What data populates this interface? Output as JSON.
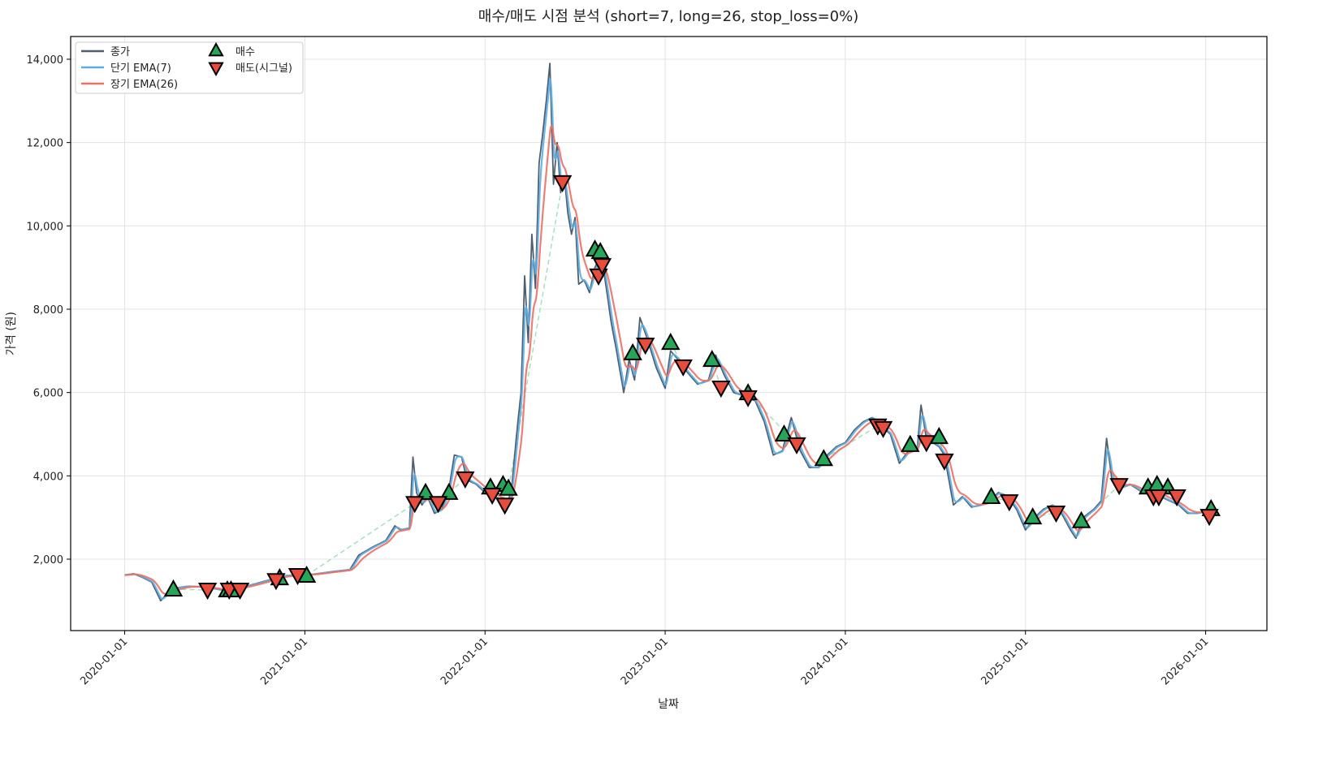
{
  "chart_data": {
    "type": "line",
    "title": "매수/매도 시점 분석 (short=7, long=26, stop_loss=0%)",
    "xlabel": "날짜",
    "ylabel": "가격 (원)",
    "xlim": [
      2019.7,
      2026.34
    ],
    "ylim": [
      286,
      14545
    ],
    "grid": true,
    "legend_placement": "top-left",
    "x_ticks": [
      {
        "value": 2020,
        "label": "2020-01-01"
      },
      {
        "value": 2021,
        "label": "2021-01-01"
      },
      {
        "value": 2022,
        "label": "2022-01-01"
      },
      {
        "value": 2023,
        "label": "2023-01-01"
      },
      {
        "value": 2024,
        "label": "2024-01-01"
      },
      {
        "value": 2025,
        "label": "2025-01-01"
      },
      {
        "value": 2026,
        "label": "2026-01-01"
      }
    ],
    "y_ticks": [
      {
        "value": 2000,
        "label": "2,000"
      },
      {
        "value": 4000,
        "label": "4,000"
      },
      {
        "value": 6000,
        "label": "6,000"
      },
      {
        "value": 8000,
        "label": "8,000"
      },
      {
        "value": 10000,
        "label": "10,000"
      },
      {
        "value": 12000,
        "label": "12,000"
      },
      {
        "value": 14000,
        "label": "14,000"
      }
    ],
    "legend": [
      {
        "label": "종가",
        "kind": "line",
        "color": "#4f5f70"
      },
      {
        "label": "단기 EMA(7)",
        "kind": "line",
        "color": "#5dade2"
      },
      {
        "label": "장기 EMA(26)",
        "kind": "line",
        "color": "#ec7063"
      },
      {
        "label": "매수",
        "kind": "buy",
        "color": "#27a559"
      },
      {
        "label": "매도(시그널)",
        "kind": "sell",
        "color": "#e74c3c"
      }
    ],
    "ema_short": 7,
    "ema_long": 26,
    "close_x_unit": "decimal year",
    "close": [
      [
        2020.0,
        1620
      ],
      [
        2020.05,
        1650
      ],
      [
        2020.1,
        1560
      ],
      [
        2020.15,
        1450
      ],
      [
        2020.2,
        1000
      ],
      [
        2020.22,
        1100
      ],
      [
        2020.27,
        1300
      ],
      [
        2020.35,
        1350
      ],
      [
        2020.45,
        1330
      ],
      [
        2020.55,
        1250
      ],
      [
        2020.62,
        1300
      ],
      [
        2020.7,
        1380
      ],
      [
        2020.8,
        1500
      ],
      [
        2020.88,
        1600
      ],
      [
        2020.95,
        1620
      ],
      [
        2021.05,
        1640
      ],
      [
        2021.15,
        1700
      ],
      [
        2021.25,
        1750
      ],
      [
        2021.3,
        2100
      ],
      [
        2021.38,
        2300
      ],
      [
        2021.45,
        2450
      ],
      [
        2021.5,
        2800
      ],
      [
        2021.53,
        2700
      ],
      [
        2021.58,
        2750
      ],
      [
        2021.6,
        4450
      ],
      [
        2021.62,
        3600
      ],
      [
        2021.65,
        3300
      ],
      [
        2021.68,
        3500
      ],
      [
        2021.72,
        3100
      ],
      [
        2021.76,
        3200
      ],
      [
        2021.8,
        3700
      ],
      [
        2021.83,
        4500
      ],
      [
        2021.87,
        4450
      ],
      [
        2021.9,
        3900
      ],
      [
        2021.95,
        3800
      ],
      [
        2022.0,
        3600
      ],
      [
        2022.05,
        3500
      ],
      [
        2022.1,
        3400
      ],
      [
        2022.12,
        3200
      ],
      [
        2022.15,
        3800
      ],
      [
        2022.18,
        5200
      ],
      [
        2022.2,
        6000
      ],
      [
        2022.22,
        8800
      ],
      [
        2022.24,
        7200
      ],
      [
        2022.26,
        9800
      ],
      [
        2022.28,
        8500
      ],
      [
        2022.3,
        11500
      ],
      [
        2022.32,
        12200
      ],
      [
        2022.34,
        13000
      ],
      [
        2022.36,
        13900
      ],
      [
        2022.38,
        11000
      ],
      [
        2022.4,
        12000
      ],
      [
        2022.42,
        10800
      ],
      [
        2022.44,
        11200
      ],
      [
        2022.46,
        10300
      ],
      [
        2022.48,
        9800
      ],
      [
        2022.5,
        10200
      ],
      [
        2022.52,
        8600
      ],
      [
        2022.55,
        8700
      ],
      [
        2022.58,
        8400
      ],
      [
        2022.61,
        9000
      ],
      [
        2022.64,
        9300
      ],
      [
        2022.66,
        8900
      ],
      [
        2022.7,
        7700
      ],
      [
        2022.73,
        7000
      ],
      [
        2022.77,
        6000
      ],
      [
        2022.8,
        6800
      ],
      [
        2022.83,
        6300
      ],
      [
        2022.86,
        7800
      ],
      [
        2022.9,
        7300
      ],
      [
        2022.95,
        6600
      ],
      [
        2023.0,
        6100
      ],
      [
        2023.03,
        7000
      ],
      [
        2023.07,
        6800
      ],
      [
        2023.12,
        6500
      ],
      [
        2023.18,
        6200
      ],
      [
        2023.24,
        6300
      ],
      [
        2023.28,
        6900
      ],
      [
        2023.33,
        6400
      ],
      [
        2023.38,
        6000
      ],
      [
        2023.45,
        5900
      ],
      [
        2023.5,
        5800
      ],
      [
        2023.55,
        5300
      ],
      [
        2023.6,
        4500
      ],
      [
        2023.65,
        4600
      ],
      [
        2023.7,
        5400
      ],
      [
        2023.75,
        4600
      ],
      [
        2023.8,
        4200
      ],
      [
        2023.85,
        4200
      ],
      [
        2023.9,
        4500
      ],
      [
        2023.95,
        4700
      ],
      [
        2024.0,
        4800
      ],
      [
        2024.05,
        5100
      ],
      [
        2024.1,
        5300
      ],
      [
        2024.15,
        5400
      ],
      [
        2024.2,
        5200
      ],
      [
        2024.25,
        5000
      ],
      [
        2024.3,
        4300
      ],
      [
        2024.35,
        4600
      ],
      [
        2024.4,
        4700
      ],
      [
        2024.42,
        5700
      ],
      [
        2024.45,
        4900
      ],
      [
        2024.52,
        4700
      ],
      [
        2024.55,
        4500
      ],
      [
        2024.6,
        3300
      ],
      [
        2024.65,
        3500
      ],
      [
        2024.7,
        3250
      ],
      [
        2024.75,
        3300
      ],
      [
        2024.8,
        3400
      ],
      [
        2024.85,
        3600
      ],
      [
        2024.9,
        3500
      ],
      [
        2024.95,
        3200
      ],
      [
        2025.0,
        2700
      ],
      [
        2025.05,
        3000
      ],
      [
        2025.1,
        3200
      ],
      [
        2025.15,
        3300
      ],
      [
        2025.2,
        3100
      ],
      [
        2025.25,
        2700
      ],
      [
        2025.28,
        2500
      ],
      [
        2025.32,
        3000
      ],
      [
        2025.38,
        3200
      ],
      [
        2025.42,
        3400
      ],
      [
        2025.45,
        4900
      ],
      [
        2025.48,
        3900
      ],
      [
        2025.52,
        3700
      ],
      [
        2025.58,
        3800
      ],
      [
        2025.65,
        3600
      ],
      [
        2025.7,
        3700
      ],
      [
        2025.75,
        3500
      ],
      [
        2025.8,
        3400
      ],
      [
        2025.85,
        3300
      ],
      [
        2025.9,
        3100
      ],
      [
        2025.95,
        3100
      ],
      [
        2026.0,
        3150
      ],
      [
        2026.05,
        3100
      ]
    ],
    "buy_signals": [
      [
        2020.27,
        1280
      ],
      [
        2020.57,
        1260
      ],
      [
        2020.59,
        1260
      ],
      [
        2020.86,
        1550
      ],
      [
        2021.01,
        1610
      ],
      [
        2021.67,
        3600
      ],
      [
        2021.8,
        3600
      ],
      [
        2022.03,
        3730
      ],
      [
        2022.1,
        3790
      ],
      [
        2022.13,
        3700
      ],
      [
        2022.61,
        9440
      ],
      [
        2022.64,
        9380
      ],
      [
        2022.82,
        6950
      ],
      [
        2023.03,
        7200
      ],
      [
        2023.26,
        6790
      ],
      [
        2023.46,
        5990
      ],
      [
        2023.66,
        5000
      ],
      [
        2023.88,
        4410
      ],
      [
        2024.36,
        4750
      ],
      [
        2024.52,
        4940
      ],
      [
        2024.81,
        3500
      ],
      [
        2025.04,
        3010
      ],
      [
        2025.31,
        2920
      ],
      [
        2025.68,
        3730
      ],
      [
        2025.73,
        3790
      ],
      [
        2025.79,
        3730
      ],
      [
        2026.03,
        3210
      ]
    ],
    "sell_signals": [
      [
        2020.46,
        1260
      ],
      [
        2020.58,
        1260
      ],
      [
        2020.64,
        1260
      ],
      [
        2020.84,
        1490
      ],
      [
        2020.96,
        1610
      ],
      [
        2021.61,
        3340
      ],
      [
        2021.74,
        3340
      ],
      [
        2021.89,
        3930
      ],
      [
        2022.04,
        3540
      ],
      [
        2022.11,
        3300
      ],
      [
        2022.43,
        11040
      ],
      [
        2022.63,
        8800
      ],
      [
        2022.65,
        9050
      ],
      [
        2022.89,
        7140
      ],
      [
        2023.1,
        6620
      ],
      [
        2023.31,
        6110
      ],
      [
        2023.46,
        5880
      ],
      [
        2023.73,
        4750
      ],
      [
        2024.18,
        5200
      ],
      [
        2024.21,
        5140
      ],
      [
        2024.45,
        4800
      ],
      [
        2024.55,
        4360
      ],
      [
        2024.91,
        3380
      ],
      [
        2025.17,
        3110
      ],
      [
        2025.52,
        3770
      ],
      [
        2025.71,
        3500
      ],
      [
        2025.74,
        3500
      ],
      [
        2025.84,
        3500
      ],
      [
        2026.02,
        3030
      ]
    ]
  }
}
